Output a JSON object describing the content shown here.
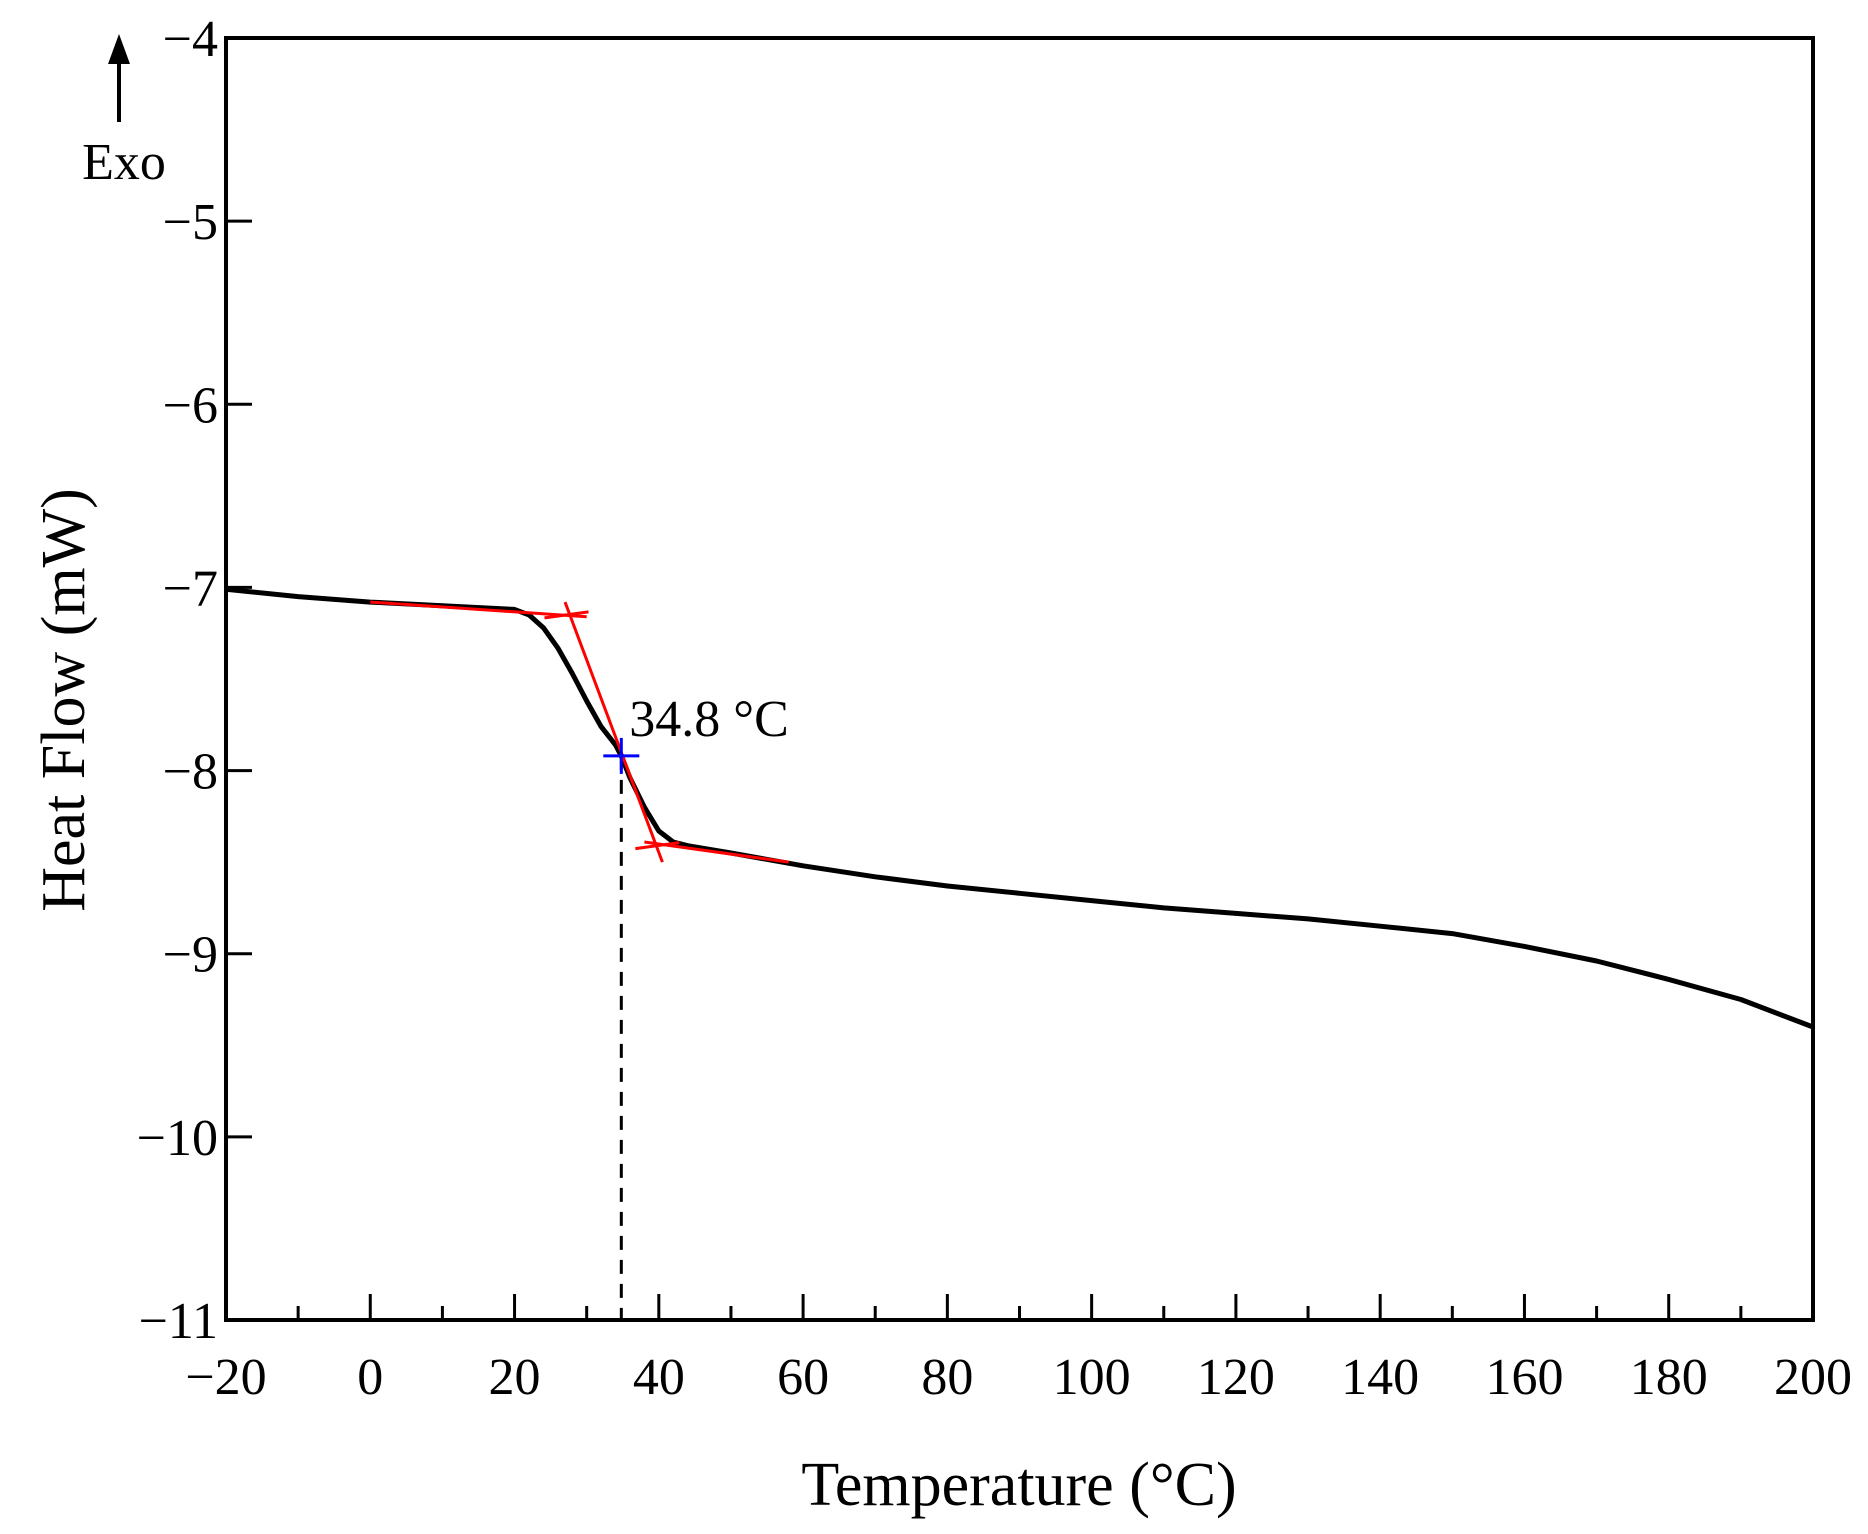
{
  "chart_data": {
    "type": "line",
    "title": "",
    "xlabel": "Temperature (°C)",
    "ylabel": "Heat Flow (mW)",
    "xlim": [
      -20,
      200
    ],
    "ylim": [
      -11,
      -4
    ],
    "x_ticks": [
      -20,
      0,
      20,
      40,
      60,
      80,
      100,
      120,
      140,
      160,
      180,
      200
    ],
    "x_tick_labels": [
      "−20",
      "0",
      "20",
      "40",
      "60",
      "80",
      "100",
      "120",
      "140",
      "160",
      "180",
      "200"
    ],
    "y_ticks": [
      -11,
      -10,
      -9,
      -8,
      -7,
      -6,
      -5,
      -4
    ],
    "y_tick_labels": [
      "−11",
      "−10",
      "−9",
      "−8",
      "−7",
      "−6",
      "−5",
      "−4"
    ],
    "grid": false,
    "exo_label": "Exo",
    "series": [
      {
        "color": "#000000",
        "x": [
          -20,
          -10,
          0,
          10,
          20,
          22,
          24,
          26,
          28,
          30,
          32,
          34,
          34.8,
          36,
          38,
          40,
          42,
          44,
          50,
          60,
          70,
          80,
          90,
          100,
          110,
          120,
          130,
          140,
          150,
          160,
          170,
          180,
          190,
          200
        ],
        "y": [
          -7.01,
          -7.05,
          -7.08,
          -7.1,
          -7.12,
          -7.15,
          -7.22,
          -7.33,
          -7.47,
          -7.62,
          -7.76,
          -7.86,
          -7.92,
          -8.04,
          -8.2,
          -8.33,
          -8.39,
          -8.41,
          -8.45,
          -8.52,
          -8.58,
          -8.63,
          -8.67,
          -8.71,
          -8.75,
          -8.78,
          -8.81,
          -8.85,
          -8.89,
          -8.96,
          -9.04,
          -9.14,
          -9.25,
          -9.4
        ]
      }
    ],
    "tangent_lines": [
      {
        "color": "#ff0000",
        "x": [
          0,
          30
        ],
        "y": [
          -7.08,
          -7.16
        ]
      },
      {
        "color": "#ff0000",
        "x": [
          27,
          40.5
        ],
        "y": [
          -7.08,
          -8.5
        ]
      },
      {
        "color": "#ff0000",
        "x": [
          38,
          58
        ],
        "y": [
          -8.39,
          -8.5
        ]
      }
    ],
    "tangent_marks": [
      {
        "color": "#ff0000",
        "x": 27.2,
        "y": -7.15
      },
      {
        "color": "#ff0000",
        "x": 39.8,
        "y": -8.41
      }
    ],
    "inflection": {
      "x": 34.8,
      "y": -7.92,
      "label": "34.8 °C",
      "color": "#0000ff"
    }
  }
}
